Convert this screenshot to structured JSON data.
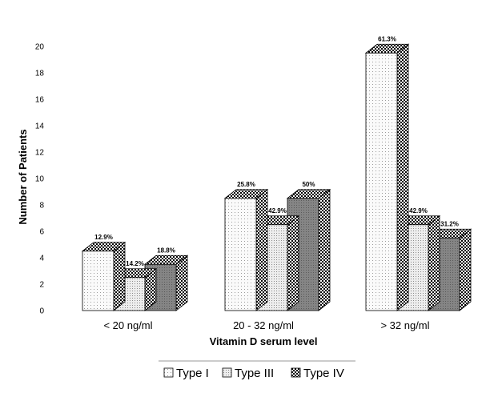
{
  "chart_data": {
    "type": "bar",
    "xlabel": "Vitamin D serum level",
    "ylabel": "Number of Patients",
    "ylim": [
      0,
      20
    ],
    "yticks": [
      "0",
      "2",
      "4",
      "6",
      "8",
      "10",
      "12",
      "14",
      "16",
      "18",
      "20"
    ],
    "categories": [
      "< 20 ng/ml",
      "20 - 32 ng/ml",
      "> 32 ng/ml"
    ],
    "series": [
      {
        "name": "Type I",
        "values": [
          4.5,
          8.5,
          19.5
        ],
        "labels": [
          "12.9%",
          "25.8%",
          "61.3%"
        ],
        "color": "#f4f4f4"
      },
      {
        "name": "Type III",
        "values": [
          2.5,
          6.5,
          6.5
        ],
        "labels": [
          "14.2%",
          "42.9%",
          "42.9%"
        ],
        "color": "#e0e0e0"
      },
      {
        "name": "Type IV",
        "values": [
          3.5,
          8.5,
          5.5
        ],
        "labels": [
          "18.8%",
          "50%",
          "31.2%"
        ],
        "color": "#808080"
      }
    ],
    "legend_position": "bottom",
    "grid": false,
    "style": "3d-clustered-bar"
  }
}
